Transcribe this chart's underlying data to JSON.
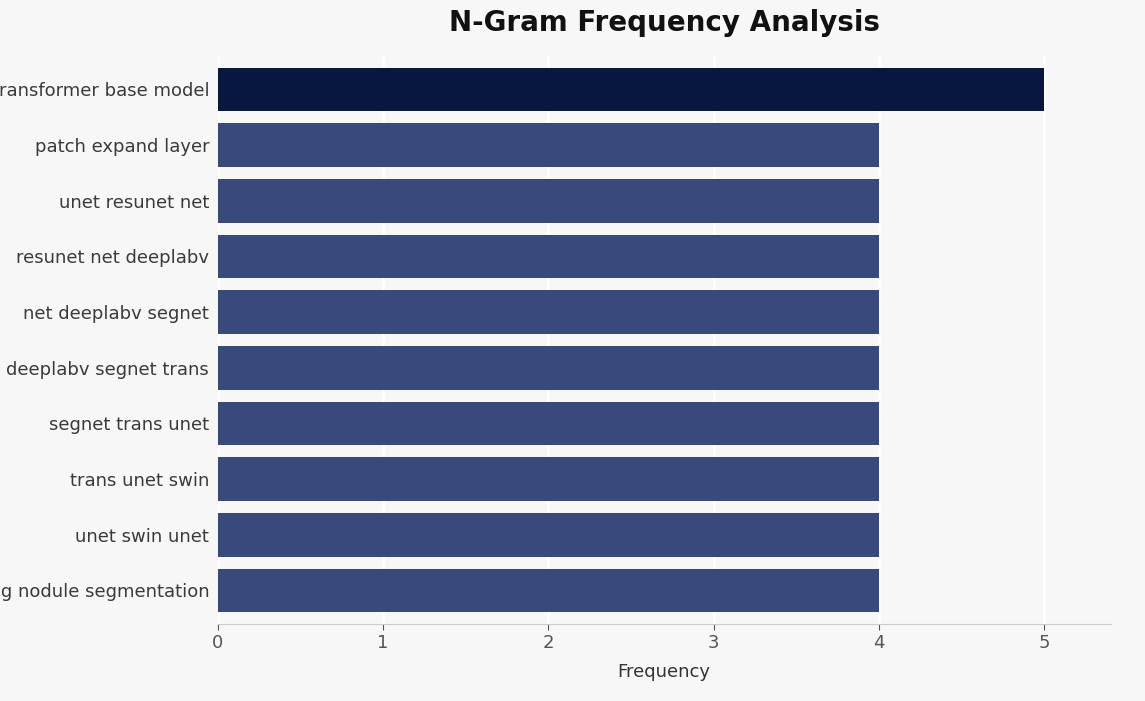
{
  "title": "N-Gram Frequency Analysis",
  "categories": [
    "lung nodule segmentation",
    "unet swin unet",
    "trans unet swin",
    "segnet trans unet",
    "deeplabv segnet trans",
    "net deeplabv segnet",
    "resunet net deeplabv",
    "unet resunet net",
    "patch expand layer",
    "transformer base model"
  ],
  "values": [
    4,
    4,
    4,
    4,
    4,
    4,
    4,
    4,
    4,
    5
  ],
  "bar_colors": [
    "#374a7a",
    "#374a7a",
    "#374a7a",
    "#374a7a",
    "#374a7a",
    "#374a7a",
    "#374a7a",
    "#374a7a",
    "#374a7a",
    "#071740"
  ],
  "background_color": "#f7f7f7",
  "plot_bg_color": "#f7f7f7",
  "xlabel": "Frequency",
  "xlim": [
    0,
    5.4
  ],
  "xticks": [
    0,
    1,
    2,
    3,
    4,
    5
  ],
  "title_fontsize": 20,
  "label_fontsize": 13,
  "tick_fontsize": 13,
  "bar_height": 0.78
}
